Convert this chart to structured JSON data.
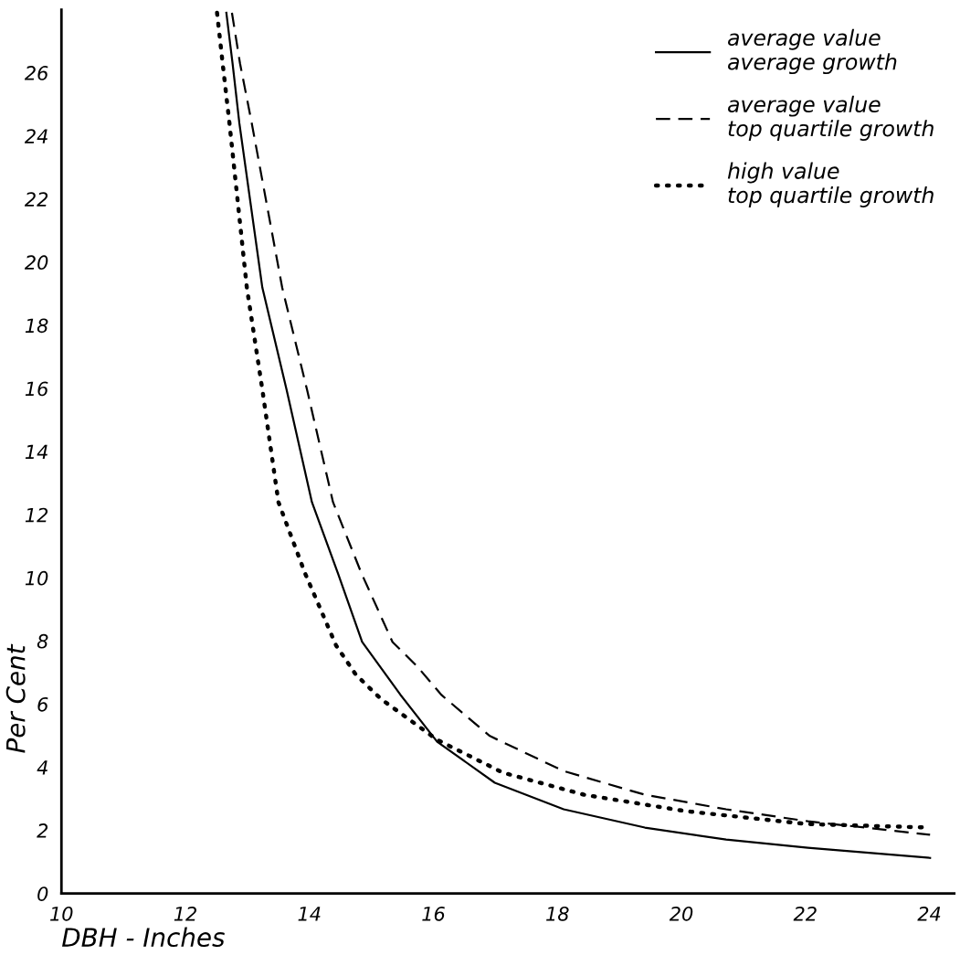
{
  "chart_data": {
    "type": "line",
    "xlabel": "DBH - Inches",
    "ylabel": "Per Cent",
    "xlim": [
      10,
      24.4
    ],
    "ylim": [
      0,
      28
    ],
    "xticks": [
      10,
      12,
      14,
      16,
      18,
      20,
      22,
      24
    ],
    "yticks": [
      0,
      2,
      4,
      6,
      8,
      10,
      12,
      14,
      16,
      18,
      20,
      22,
      24,
      26
    ],
    "grid": false,
    "legend": "top right",
    "marker": "none",
    "series": [
      {
        "name": "average value\naverage growth",
        "color": "#000000",
        "line_style": "solid",
        "x": [
          12.66,
          12.76,
          12.87,
          13.24,
          13.63,
          14.04,
          14.46,
          14.85,
          15.47,
          16.06,
          16.99,
          18.1,
          19.41,
          20.72,
          22.04,
          24.01
        ],
        "values": [
          27.9,
          26.3,
          24.4,
          19.2,
          15.97,
          12.4,
          10.14,
          7.97,
          6.29,
          4.81,
          3.51,
          2.67,
          2.09,
          1.71,
          1.45,
          1.13
        ]
      },
      {
        "name": "average value\ntop quartile growth",
        "color": "#000000",
        "line_style": "dashed",
        "x": [
          12.75,
          12.88,
          13.07,
          13.56,
          13.96,
          14.38,
          14.84,
          15.34,
          15.74,
          16.13,
          16.91,
          18.1,
          19.41,
          20.72,
          22.04,
          24.01
        ],
        "values": [
          27.9,
          26.3,
          24.4,
          19.2,
          15.97,
          12.4,
          10.14,
          7.97,
          7.19,
          6.29,
          4.99,
          3.88,
          3.13,
          2.67,
          2.29,
          1.86
        ]
      },
      {
        "name": "high value\ntop quartile growth",
        "color": "#000000",
        "line_style": "dotted",
        "x": [
          12.51,
          12.6,
          12.71,
          12.99,
          13.24,
          13.5,
          13.93,
          14.43,
          14.75,
          15.15,
          16.06,
          17.12,
          18.43,
          20.07,
          22.04,
          24.01
        ],
        "values": [
          27.9,
          26.3,
          24.4,
          19.2,
          15.97,
          12.4,
          10.14,
          7.86,
          6.93,
          6.17,
          4.87,
          3.83,
          3.13,
          2.61,
          2.2,
          2.09
        ]
      }
    ]
  }
}
